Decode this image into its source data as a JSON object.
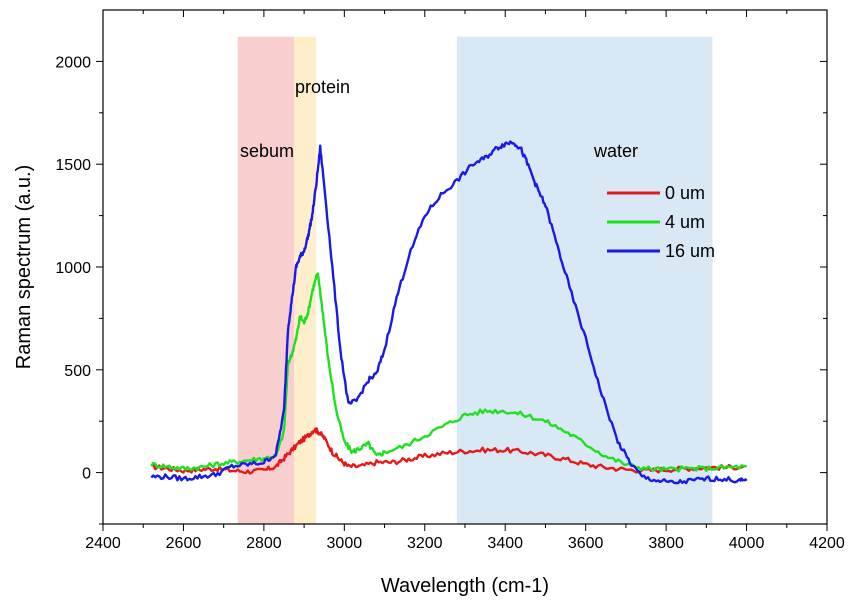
{
  "chart_data": {
    "type": "line",
    "title": "",
    "xlabel": "Wavelength (cm-1)",
    "ylabel": "Raman spectrum (a.u.)",
    "xlim": [
      2400,
      4200
    ],
    "ylim": [
      -250,
      2250
    ],
    "xticks": [
      2400,
      2600,
      2800,
      3000,
      3200,
      3400,
      3600,
      3800,
      4000,
      4200
    ],
    "yticks": [
      0,
      500,
      1000,
      1500,
      2000
    ],
    "grid": false,
    "legend_position": "right-center",
    "bands": [
      {
        "label": "sebum",
        "x_start": 2735,
        "x_end": 2875,
        "color": "#f4a6a6"
      },
      {
        "label": "protein",
        "x_start": 2875,
        "x_end": 2930,
        "color": "#fde0a0"
      },
      {
        "label": "water",
        "x_start": 3280,
        "x_end": 3915,
        "color": "#b8d6ec"
      }
    ],
    "series": [
      {
        "name": "0 um",
        "color": "#e31a1c",
        "x": [
          2520,
          2560,
          2600,
          2640,
          2680,
          2720,
          2760,
          2800,
          2830,
          2850,
          2870,
          2890,
          2910,
          2925,
          2935,
          2950,
          2970,
          2990,
          3010,
          3040,
          3080,
          3120,
          3160,
          3200,
          3250,
          3300,
          3350,
          3400,
          3450,
          3500,
          3550,
          3600,
          3650,
          3700,
          3750,
          3800,
          3850,
          3900,
          3950,
          4000
        ],
        "y": [
          30,
          20,
          10,
          15,
          20,
          10,
          5,
          10,
          30,
          70,
          110,
          150,
          180,
          210,
          200,
          170,
          100,
          60,
          30,
          30,
          50,
          50,
          65,
          80,
          95,
          105,
          110,
          110,
          100,
          85,
          65,
          40,
          25,
          15,
          10,
          15,
          20,
          25,
          25,
          30
        ]
      },
      {
        "name": "4 um",
        "color": "#1fe01f",
        "x": [
          2520,
          2560,
          2600,
          2640,
          2680,
          2720,
          2760,
          2800,
          2830,
          2850,
          2860,
          2870,
          2880,
          2890,
          2900,
          2910,
          2920,
          2930,
          2935,
          2945,
          2960,
          2980,
          3000,
          3020,
          3040,
          3060,
          3080,
          3100,
          3150,
          3200,
          3250,
          3300,
          3350,
          3400,
          3450,
          3500,
          3550,
          3600,
          3650,
          3700,
          3750,
          3800,
          3850,
          3900,
          3950,
          4000
        ],
        "y": [
          40,
          30,
          20,
          25,
          40,
          50,
          60,
          70,
          80,
          200,
          530,
          580,
          650,
          760,
          730,
          780,
          880,
          950,
          960,
          800,
          550,
          300,
          150,
          100,
          120,
          140,
          80,
          100,
          130,
          180,
          230,
          280,
          300,
          300,
          280,
          250,
          200,
          140,
          80,
          40,
          20,
          15,
          20,
          20,
          25,
          30
        ]
      },
      {
        "name": "16 um",
        "color": "#1a1ae6",
        "x": [
          2520,
          2560,
          2600,
          2640,
          2680,
          2720,
          2760,
          2800,
          2830,
          2850,
          2860,
          2870,
          2880,
          2890,
          2900,
          2910,
          2920,
          2930,
          2940,
          2950,
          2970,
          2990,
          3010,
          3030,
          3060,
          3080,
          3100,
          3130,
          3160,
          3200,
          3240,
          3280,
          3320,
          3350,
          3380,
          3400,
          3420,
          3440,
          3460,
          3480,
          3500,
          3530,
          3560,
          3600,
          3640,
          3680,
          3710,
          3740,
          3780,
          3820,
          3860,
          3900,
          3940,
          3980,
          4000
        ],
        "y": [
          -20,
          -20,
          -30,
          -20,
          -10,
          30,
          40,
          50,
          90,
          300,
          700,
          850,
          1000,
          1050,
          1080,
          1150,
          1250,
          1400,
          1580,
          1400,
          1000,
          600,
          330,
          350,
          450,
          480,
          600,
          850,
          1050,
          1250,
          1350,
          1420,
          1500,
          1530,
          1580,
          1600,
          1610,
          1570,
          1480,
          1380,
          1300,
          1100,
          900,
          650,
          380,
          150,
          50,
          -20,
          -40,
          -50,
          -40,
          -30,
          -30,
          -40,
          -40
        ]
      }
    ]
  }
}
